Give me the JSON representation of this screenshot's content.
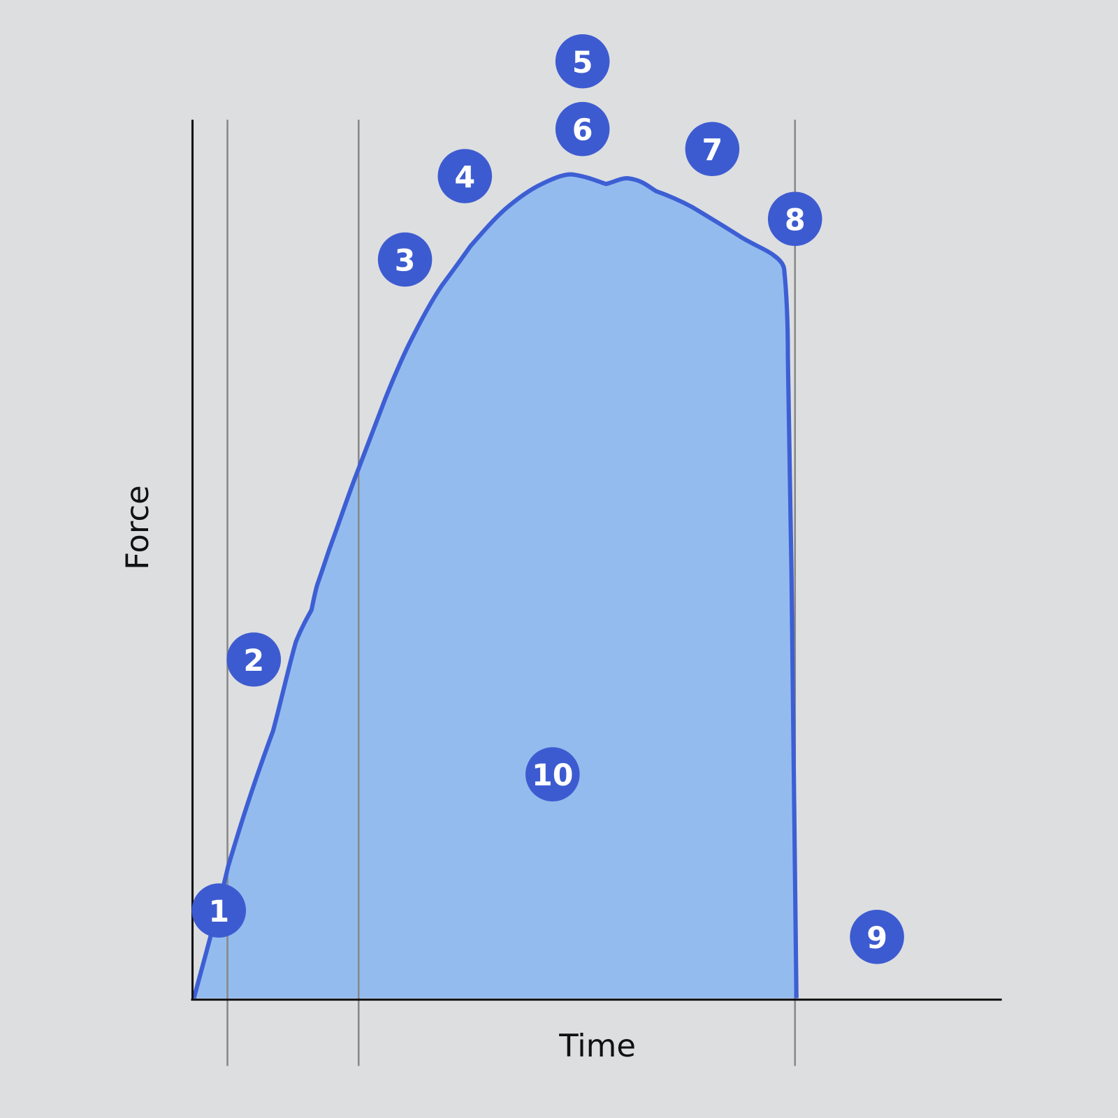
{
  "axes": {
    "x_label": "Time",
    "y_label": "Force"
  },
  "markers": [
    {
      "label": "1"
    },
    {
      "label": "2"
    },
    {
      "label": "3"
    },
    {
      "label": "4"
    },
    {
      "label": "5"
    },
    {
      "label": "6"
    },
    {
      "label": "7"
    },
    {
      "label": "8"
    },
    {
      "label": "9"
    },
    {
      "label": "10"
    }
  ]
}
